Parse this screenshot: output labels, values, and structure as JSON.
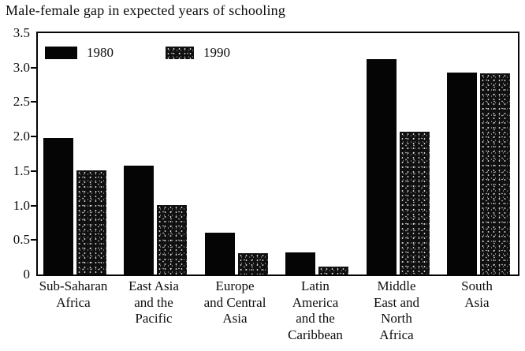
{
  "title": "Male-female gap in expected years of schooling",
  "colors": {
    "bar_1980": "#050505",
    "bar_1990_base": "#101010",
    "bar_1990_speckle": "#ffffff",
    "axis": "#050505",
    "background": "#ffffff",
    "text": "#0d0d0d"
  },
  "legend": {
    "items": [
      {
        "label": "1980",
        "swatch": "solid-black"
      },
      {
        "label": "1990",
        "swatch": "speckled"
      }
    ],
    "position": "top-left-inside"
  },
  "y_axis": {
    "ticks": [
      "3.5",
      "3.0",
      "2.5",
      "2.0",
      "1.5",
      "1.0",
      "0.5",
      "0"
    ],
    "min": 0,
    "max": 3.5
  },
  "chart_data": {
    "type": "bar",
    "title": "Male-female gap in expected years of schooling",
    "categories": [
      "Sub-Saharan Africa",
      "East Asia and the Pacific",
      "Europe and Central Asia",
      "Latin America and the Caribbean",
      "Middle East and North Africa",
      "South Asia"
    ],
    "category_label_lines": [
      [
        "Sub-Saharan",
        "Africa"
      ],
      [
        "East Asia",
        "and the",
        "Pacific"
      ],
      [
        "Europe",
        "and Central",
        "Asia"
      ],
      [
        "Latin",
        "America",
        "and the",
        "Caribbean"
      ],
      [
        "Middle",
        "East and",
        "North",
        "Africa"
      ],
      [
        "South",
        "Asia"
      ]
    ],
    "series": [
      {
        "name": "1980",
        "values": [
          1.98,
          1.58,
          0.61,
          0.32,
          3.12,
          2.93
        ]
      },
      {
        "name": "1990",
        "values": [
          1.51,
          1.01,
          0.31,
          0.12,
          2.07,
          2.92
        ]
      }
    ],
    "xlabel": "",
    "ylabel": "",
    "ylim": [
      0,
      3.5
    ],
    "grid": false,
    "legend_position": "top-left inside plot"
  }
}
